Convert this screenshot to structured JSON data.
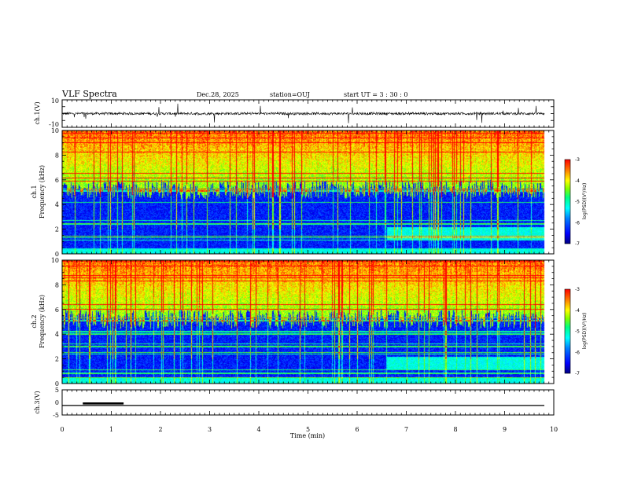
{
  "header": {
    "title": "VLF Spectra",
    "date": "Dec.28, 2025",
    "station": "station=OUJ",
    "start": "start  UT =   3 : 30 : 0"
  },
  "chart_data": [
    {
      "type": "line",
      "name": "ch1-waveform",
      "ylabel": "ch.1(V)",
      "ylim": [
        -10,
        10
      ],
      "yticks": [
        "10",
        "-10"
      ],
      "baseline": 0,
      "xlim": [
        0,
        10
      ]
    },
    {
      "type": "heatmap",
      "name": "ch1-spectrogram",
      "ylabel": "ch.1\nFrequency (kHz)",
      "ylabel_parts": [
        "ch.1",
        "Frequency (kHz)"
      ],
      "ylim": [
        0,
        10
      ],
      "yticks": [
        "0",
        "2",
        "4",
        "6",
        "8",
        "10"
      ],
      "xlim": [
        0,
        10
      ],
      "colorbar": {
        "label": "log(PSD)(V²/Hz)",
        "range": [
          -7,
          -3
        ],
        "ticks": [
          "-3",
          "-4",
          "-5",
          "-6",
          "-7"
        ]
      }
    },
    {
      "type": "heatmap",
      "name": "ch2-spectrogram",
      "ylabel": "ch.2\nFrequency (kHz)",
      "ylabel_parts": [
        "ch.2",
        "Frequency (kHz)"
      ],
      "ylim": [
        0,
        10
      ],
      "yticks": [
        "0",
        "2",
        "4",
        "6",
        "8",
        "10"
      ],
      "xlim": [
        0,
        10
      ],
      "colorbar": {
        "label": "log(PSD)(V²/Hz)",
        "range": [
          -7,
          -3
        ],
        "ticks": [
          "-3",
          "-4",
          "-5",
          "-6",
          "-7"
        ]
      }
    },
    {
      "type": "line",
      "name": "ch3-voltage",
      "ylabel": "ch.3(V)",
      "ylim": [
        -5,
        5
      ],
      "yticks": [
        "5",
        "0",
        "-5"
      ],
      "level": -1.2,
      "marker_segment": [
        0.42,
        1.25
      ],
      "xlim": [
        0,
        10
      ]
    }
  ],
  "xaxis": {
    "label": "Time  (min)",
    "ticks": [
      "0",
      "1",
      "2",
      "3",
      "4",
      "5",
      "6",
      "7",
      "8",
      "9",
      "10"
    ],
    "range": [
      0,
      10
    ]
  },
  "colors": {
    "colormap": [
      "#000080",
      "#0000ff",
      "#0080ff",
      "#00ffff",
      "#00ff80",
      "#80ff00",
      "#ffff00",
      "#ff8000",
      "#ff0000"
    ]
  }
}
